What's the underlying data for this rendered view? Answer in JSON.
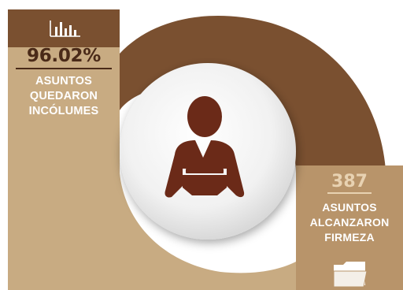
{
  "stats": [
    {
      "value": "96.02%",
      "label_lines": [
        "ASUNTOS",
        "QUEDARON",
        "INCÓLUMES"
      ]
    },
    {
      "value": "387",
      "label_lines": [
        "ASUNTOS",
        "ALCANZARON",
        "FIRMEZA"
      ]
    }
  ],
  "icons": {
    "top_left": "bar-chart-icon",
    "center": "person-at-desk-icon",
    "bottom_right": "folder-icon"
  },
  "colors": {
    "dark_brown": "#7a5030",
    "tan": "#c8ab82",
    "text_dark": "#4a2a18",
    "figure": "#6b2a18",
    "number_light": "#e8d2b2"
  }
}
